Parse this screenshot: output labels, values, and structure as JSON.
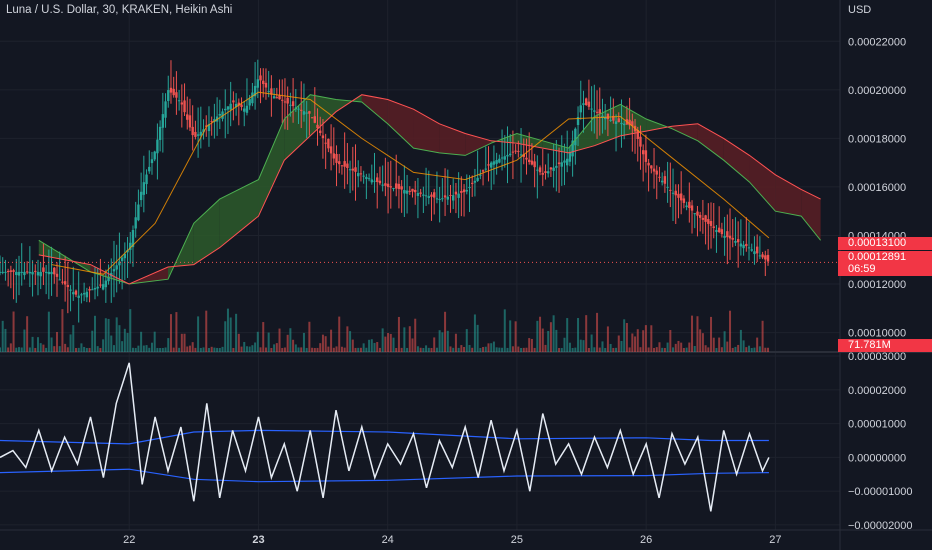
{
  "title": "Luna / U.S. Dollar, 30, KRAKEN, Heikin Ashi",
  "currency": "USD",
  "price_tags": {
    "last_price": "0.00013100",
    "current_price": "0.00012891",
    "countdown": "06:59",
    "volume": "71.781M"
  },
  "colors": {
    "background": "#131722",
    "up": "#26a69a",
    "down": "#ef5350",
    "cloud_up": "#2d5a2a",
    "cloud_down": "#5a1f24",
    "oscillator": "#e6ecf5",
    "bands": "#2962ff",
    "grid": "#1e222d",
    "text": "#d1d4dc",
    "tag": "#f23645"
  },
  "chart_data": [
    {
      "type": "line",
      "title": "Luna / U.S. Dollar, 30, KRAKEN, Heikin Ashi",
      "candle_style": "Heikin Ashi",
      "x_ticks": [
        "22",
        "23",
        "24",
        "25",
        "26",
        "27"
      ],
      "y_ticks": [
        "0.00022000",
        "0.00020000",
        "0.00018000",
        "0.00016000",
        "0.00014000",
        "0.00012000",
        "0.00010000"
      ],
      "ylim": [
        9.2e-05,
        0.000237
      ],
      "series": [
        {
          "role": "close",
          "x": [
            21.4,
            21.6,
            21.8,
            22.0,
            22.1,
            22.2,
            22.3,
            22.4,
            22.5,
            22.6,
            22.7,
            22.8,
            22.9,
            23.0,
            23.1,
            23.2,
            23.4,
            23.6,
            23.8,
            24.0,
            24.2,
            24.4,
            24.6,
            24.8,
            25.0,
            25.2,
            25.4,
            25.5,
            25.7,
            25.9,
            26.0,
            26.2,
            26.4,
            26.6,
            26.8,
            26.95
          ],
          "values": [
            0.000125,
            0.000115,
            0.00012,
            0.000135,
            0.00016,
            0.000175,
            0.0002,
            0.000195,
            0.00018,
            0.000185,
            0.00019,
            0.000195,
            0.000192,
            0.000205,
            0.000198,
            0.000195,
            0.00019,
            0.00017,
            0.000165,
            0.00016,
            0.000158,
            0.000155,
            0.000158,
            0.00017,
            0.000175,
            0.000165,
            0.000172,
            0.000195,
            0.000188,
            0.000185,
            0.00017,
            0.000158,
            0.000148,
            0.00014,
            0.000135,
            0.000129
          ]
        },
        {
          "role": "cloud_span_a",
          "x": [
            21.3,
            21.7,
            22.0,
            22.3,
            22.5,
            22.7,
            23.0,
            23.2,
            23.4,
            23.6,
            23.8,
            24.0,
            24.2,
            24.4,
            24.6,
            24.8,
            25.0,
            25.2,
            25.4,
            25.6,
            25.8,
            26.0,
            26.2,
            26.4,
            26.6,
            26.8,
            27.0,
            27.2,
            27.35
          ],
          "values": [
            0.000138,
            0.000125,
            0.00012,
            0.000122,
            0.000145,
            0.000155,
            0.000163,
            0.000188,
            0.000198,
            0.000196,
            0.000195,
            0.000186,
            0.000176,
            0.000174,
            0.000173,
            0.000178,
            0.000182,
            0.000179,
            0.000176,
            0.000189,
            0.000194,
            0.000188,
            0.000184,
            0.000179,
            0.000171,
            0.000162,
            0.00015,
            0.000148,
            0.000138
          ]
        },
        {
          "role": "cloud_span_b",
          "x": [
            21.3,
            21.7,
            22.0,
            22.3,
            22.5,
            22.7,
            23.0,
            23.2,
            23.4,
            23.6,
            23.8,
            24.0,
            24.2,
            24.4,
            24.6,
            24.8,
            25.0,
            25.2,
            25.4,
            25.6,
            25.8,
            26.0,
            26.2,
            26.4,
            26.6,
            26.8,
            27.0,
            27.2,
            27.35
          ],
          "values": [
            0.000132,
            0.000128,
            0.00012,
            0.000127,
            0.000128,
            0.000135,
            0.000148,
            0.000171,
            0.000181,
            0.000191,
            0.000198,
            0.000196,
            0.000192,
            0.000186,
            0.000182,
            0.000179,
            0.000178,
            0.000176,
            0.000174,
            0.000177,
            0.000181,
            0.000183,
            0.000185,
            0.000186,
            0.00018,
            0.000173,
            0.000165,
            0.000159,
            0.000155
          ]
        },
        {
          "role": "baseline",
          "x": [
            21.4,
            21.8,
            22.2,
            22.6,
            23.0,
            23.4,
            23.8,
            24.2,
            24.6,
            25.0,
            25.4,
            25.8,
            26.2,
            26.6,
            26.95
          ],
          "values": [
            0.000128,
            0.000124,
            0.000145,
            0.000185,
            0.000199,
            0.000196,
            0.00018,
            0.000166,
            0.000163,
            0.000171,
            0.000188,
            0.000189,
            0.000172,
            0.000155,
            0.000139
          ]
        }
      ]
    },
    {
      "type": "bar",
      "role": "volume",
      "x_ticks": [
        "22",
        "23",
        "24",
        "25",
        "26",
        "27"
      ],
      "last_label": "71.781M"
    },
    {
      "type": "line",
      "role": "oscillator",
      "y_ticks": [
        "0.00003000",
        "0.00002000",
        "0.00001000",
        "0.00000000",
        "−0.00001000",
        "−0.00002000"
      ],
      "ylim": [
        -2.15e-05,
        3.12e-05
      ],
      "series": [
        {
          "role": "oscillator",
          "x": [
            21.0,
            21.1,
            21.2,
            21.3,
            21.4,
            21.5,
            21.6,
            21.7,
            21.8,
            21.9,
            22.0,
            22.1,
            22.2,
            22.3,
            22.4,
            22.5,
            22.6,
            22.7,
            22.8,
            22.9,
            23.0,
            23.1,
            23.2,
            23.3,
            23.4,
            23.5,
            23.6,
            23.7,
            23.8,
            23.9,
            24.0,
            24.1,
            24.2,
            24.3,
            24.4,
            24.5,
            24.6,
            24.7,
            24.8,
            24.9,
            25.0,
            25.1,
            25.2,
            25.3,
            25.4,
            25.5,
            25.6,
            25.7,
            25.8,
            25.9,
            26.0,
            26.1,
            26.2,
            26.3,
            26.4,
            26.5,
            26.6,
            26.7,
            26.8,
            26.9,
            26.95
          ],
          "values": [
            0.0,
            2e-06,
            -3e-06,
            8e-06,
            -4e-06,
            6e-06,
            -2e-06,
            1.2e-05,
            -6e-06,
            1.6e-05,
            2.8e-05,
            -8e-06,
            1.2e-05,
            -4e-06,
            9e-06,
            -1.3e-05,
            1.6e-05,
            -1.2e-05,
            8e-06,
            -4e-06,
            1.2e-05,
            -6e-06,
            4e-06,
            -1e-05,
            8e-06,
            -1.2e-05,
            1.4e-05,
            -4e-06,
            9e-06,
            -6e-06,
            4e-06,
            -2e-06,
            7e-06,
            -9e-06,
            5e-06,
            -3e-06,
            9e-06,
            -6e-06,
            1.1e-05,
            -4e-06,
            8e-06,
            -1e-05,
            1.3e-05,
            -2e-06,
            4e-06,
            -5e-06,
            6e-06,
            -3e-06,
            8e-06,
            -5e-06,
            4e-06,
            -1.2e-05,
            7e-06,
            -2e-06,
            6e-06,
            -1.6e-05,
            8e-06,
            -5e-06,
            7e-06,
            -4e-06,
            0.0
          ]
        },
        {
          "role": "upper_band",
          "x": [
            21.0,
            22.0,
            22.5,
            23.0,
            24.0,
            25.0,
            26.0,
            26.5,
            26.95
          ],
          "values": [
            5e-06,
            4e-06,
            7.5e-06,
            8e-06,
            7.5e-06,
            5.5e-06,
            5.8e-06,
            5e-06,
            5e-06
          ]
        },
        {
          "role": "lower_band",
          "x": [
            21.0,
            22.0,
            22.5,
            23.0,
            24.0,
            25.0,
            26.0,
            26.5,
            26.95
          ],
          "values": [
            -4.5e-06,
            -3.5e-06,
            -6.5e-06,
            -7.2e-06,
            -6.8e-06,
            -5.5e-06,
            -5.4e-06,
            -4.7e-06,
            -4.5e-06
          ]
        }
      ]
    }
  ]
}
